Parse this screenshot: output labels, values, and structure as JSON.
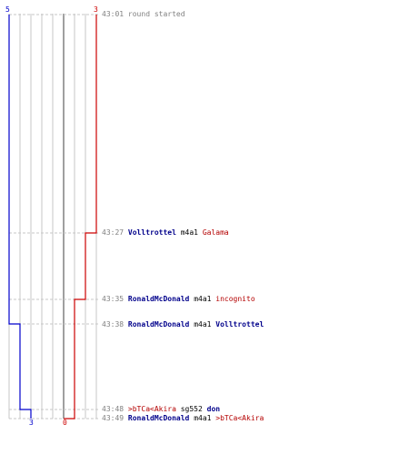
{
  "teams": {
    "blue": {
      "start_count": "5",
      "end_count": "3",
      "color": "#0000cc"
    },
    "red": {
      "start_count": "3",
      "end_count": "0",
      "color": "#cc0000"
    }
  },
  "events": [
    {
      "time": "43:01",
      "message": "round started"
    },
    {
      "time": "43:27",
      "killer": "Volltrottel",
      "weapon": "m4a1",
      "victim": "Galama",
      "victim_team": "red"
    },
    {
      "time": "43:35",
      "killer": "RonaldMcDonald",
      "weapon": "m4a1",
      "victim": "incognito",
      "victim_team": "red"
    },
    {
      "time": "43:38",
      "killer": "RonaldMcDonald",
      "weapon": "m4a1",
      "victim": "Volltrottel",
      "victim_team": "blue"
    },
    {
      "time": "43:48",
      "killer": ">bTCa<Akira",
      "killer_team": "red",
      "weapon": "sg552",
      "victim": "don",
      "victim_team": "blue"
    },
    {
      "time": "43:49",
      "killer": "RonaldMcDonald",
      "weapon": "m4a1",
      "victim": ">bTCa<Akira",
      "victim_team": "red"
    }
  ]
}
